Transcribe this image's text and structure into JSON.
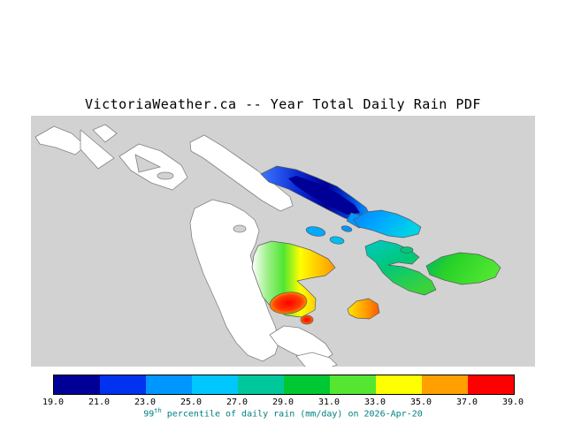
{
  "title": "VictoriaWeather.ca -- Year Total Daily Rain PDF",
  "map": {
    "sea_color": "#d2d2d2",
    "land_color": "#ffffff",
    "outline_color": "#828282"
  },
  "colorbar": {
    "ticks": [
      "19.0",
      "21.0",
      "23.0",
      "25.0",
      "27.0",
      "29.0",
      "31.0",
      "33.0",
      "35.0",
      "37.0",
      "39.0"
    ],
    "segment_colors": [
      "#000096",
      "#0032f0",
      "#0096ff",
      "#00c8ff",
      "#00c89b",
      "#00c832",
      "#55e632",
      "#ffff00",
      "#ffa000",
      "#ff0000"
    ]
  },
  "caption": {
    "number": "99",
    "ordinal": "th",
    "text": " percentile of daily rain (mm/day) on 2026-Apr-20",
    "color": "#008080"
  },
  "chart_data": {
    "type": "heatmap",
    "title": "VictoriaWeather.ca -- Year Total Daily Rain PDF",
    "legend_label": "99th percentile of daily rain (mm/day) on 2026-Apr-20",
    "units": "mm/day",
    "scale_min": 19.0,
    "scale_max": 39.0,
    "scale_ticks": [
      19.0,
      21.0,
      23.0,
      25.0,
      27.0,
      29.0,
      31.0,
      33.0,
      35.0,
      37.0,
      39.0
    ],
    "scale_colors": [
      "#000096",
      "#0032f0",
      "#0096ff",
      "#00c8ff",
      "#00c89b",
      "#00c832",
      "#55e632",
      "#ffff00",
      "#ffa000",
      "#ff0000"
    ],
    "legend_position": "bottom"
  }
}
